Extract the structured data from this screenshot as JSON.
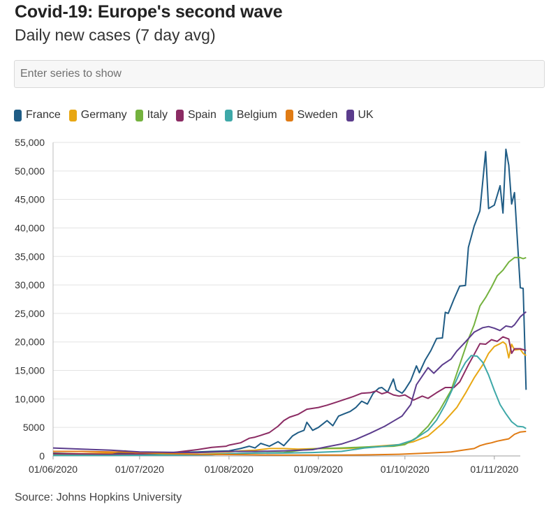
{
  "header": {
    "title": "Covid-19: Europe's second wave",
    "subtitle": "Daily new cases (7 day avg)"
  },
  "search": {
    "placeholder": "Enter series to show"
  },
  "source": "Source: Johns Hopkins University",
  "chart_data": {
    "type": "line",
    "title": "Covid-19: Europe's second wave",
    "subtitle": "Daily new cases (7 day avg)",
    "xlabel": "",
    "ylabel": "",
    "ylim": [
      0,
      55000
    ],
    "yticks": [
      0,
      5000,
      10000,
      15000,
      20000,
      25000,
      30000,
      35000,
      40000,
      45000,
      50000,
      55000
    ],
    "ytick_labels": [
      "0",
      "5000",
      "10,000",
      "15,000",
      "20,000",
      "25,000",
      "30,000",
      "35,000",
      "40,000",
      "45,000",
      "50,000",
      "55,000"
    ],
    "xlim_days": [
      0,
      162
    ],
    "xticks": [
      {
        "day": 0,
        "label": "01/06/2020"
      },
      {
        "day": 30,
        "label": "01/07/2020"
      },
      {
        "day": 61,
        "label": "01/08/2020"
      },
      {
        "day": 92,
        "label": "01/09/2020"
      },
      {
        "day": 122,
        "label": "01/10/2020"
      },
      {
        "day": 153,
        "label": "01/11/2020"
      }
    ],
    "grid": true,
    "legend_position": "top-left",
    "series": [
      {
        "name": "France",
        "color": "#1f5c85",
        "points": [
          [
            0,
            500
          ],
          [
            10,
            350
          ],
          [
            20,
            400
          ],
          [
            30,
            500
          ],
          [
            40,
            600
          ],
          [
            50,
            700
          ],
          [
            55,
            800
          ],
          [
            61,
            900
          ],
          [
            65,
            1300
          ],
          [
            68,
            1700
          ],
          [
            70,
            1400
          ],
          [
            72,
            2200
          ],
          [
            75,
            1700
          ],
          [
            78,
            2500
          ],
          [
            80,
            1800
          ],
          [
            83,
            3500
          ],
          [
            85,
            4100
          ],
          [
            87,
            4500
          ],
          [
            88,
            5900
          ],
          [
            90,
            4500
          ],
          [
            92,
            5000
          ],
          [
            94,
            5800
          ],
          [
            95,
            6200
          ],
          [
            97,
            5300
          ],
          [
            99,
            7000
          ],
          [
            101,
            7400
          ],
          [
            103,
            7800
          ],
          [
            105,
            8500
          ],
          [
            107,
            9600
          ],
          [
            109,
            9100
          ],
          [
            111,
            11000
          ],
          [
            113,
            11900
          ],
          [
            114,
            12000
          ],
          [
            116,
            11200
          ],
          [
            118,
            13500
          ],
          [
            119,
            11600
          ],
          [
            121,
            11000
          ],
          [
            122,
            11600
          ],
          [
            124,
            13200
          ],
          [
            126,
            15800
          ],
          [
            127,
            14600
          ],
          [
            129,
            16800
          ],
          [
            131,
            18500
          ],
          [
            133,
            20600
          ],
          [
            135,
            20700
          ],
          [
            136,
            25200
          ],
          [
            137,
            25000
          ],
          [
            139,
            27500
          ],
          [
            141,
            29800
          ],
          [
            143,
            29900
          ],
          [
            144,
            36600
          ],
          [
            146,
            40300
          ],
          [
            148,
            43000
          ],
          [
            150,
            53400
          ],
          [
            151,
            43400
          ],
          [
            153,
            44000
          ],
          [
            155,
            47400
          ],
          [
            156,
            42600
          ],
          [
            157,
            53800
          ],
          [
            158,
            51000
          ],
          [
            159,
            44200
          ],
          [
            160,
            46200
          ],
          [
            162,
            29500
          ],
          [
            163,
            29400
          ],
          [
            164,
            11600
          ]
        ]
      },
      {
        "name": "Germany",
        "color": "#e8a713",
        "points": [
          [
            0,
            400
          ],
          [
            10,
            400
          ],
          [
            20,
            500
          ],
          [
            25,
            900
          ],
          [
            30,
            400
          ],
          [
            40,
            500
          ],
          [
            50,
            600
          ],
          [
            61,
            700
          ],
          [
            65,
            900
          ],
          [
            70,
            1000
          ],
          [
            75,
            1300
          ],
          [
            80,
            1300
          ],
          [
            85,
            1200
          ],
          [
            92,
            1300
          ],
          [
            100,
            1300
          ],
          [
            105,
            1400
          ],
          [
            110,
            1600
          ],
          [
            115,
            1800
          ],
          [
            120,
            2000
          ],
          [
            125,
            2500
          ],
          [
            130,
            3500
          ],
          [
            135,
            5700
          ],
          [
            140,
            8500
          ],
          [
            143,
            11000
          ],
          [
            146,
            13700
          ],
          [
            149,
            16000
          ],
          [
            151,
            18000
          ],
          [
            153,
            19200
          ],
          [
            155,
            19700
          ],
          [
            156,
            20000
          ],
          [
            157,
            19600
          ],
          [
            158,
            17200
          ],
          [
            159,
            19600
          ],
          [
            160,
            18600
          ],
          [
            162,
            18700
          ],
          [
            163,
            18000
          ],
          [
            164,
            17600
          ]
        ]
      },
      {
        "name": "Italy",
        "color": "#74b23e",
        "points": [
          [
            0,
            200
          ],
          [
            10,
            200
          ],
          [
            20,
            200
          ],
          [
            30,
            200
          ],
          [
            40,
            250
          ],
          [
            50,
            300
          ],
          [
            61,
            400
          ],
          [
            70,
            500
          ],
          [
            80,
            600
          ],
          [
            86,
            1000
          ],
          [
            92,
            1300
          ],
          [
            100,
            1400
          ],
          [
            110,
            1600
          ],
          [
            118,
            1700
          ],
          [
            122,
            2000
          ],
          [
            126,
            3200
          ],
          [
            130,
            5200
          ],
          [
            134,
            8000
          ],
          [
            138,
            11500
          ],
          [
            142,
            17500
          ],
          [
            144,
            20500
          ],
          [
            146,
            23000
          ],
          [
            148,
            26300
          ],
          [
            150,
            27800
          ],
          [
            152,
            29600
          ],
          [
            154,
            31600
          ],
          [
            156,
            32600
          ],
          [
            158,
            34000
          ],
          [
            160,
            34800
          ],
          [
            162,
            34800
          ],
          [
            163,
            34600
          ],
          [
            164,
            34800
          ]
        ]
      },
      {
        "name": "Spain",
        "color": "#8b2b63",
        "points": [
          [
            0,
            400
          ],
          [
            10,
            350
          ],
          [
            20,
            300
          ],
          [
            30,
            350
          ],
          [
            40,
            500
          ],
          [
            50,
            1100
          ],
          [
            55,
            1500
          ],
          [
            60,
            1700
          ],
          [
            61,
            1900
          ],
          [
            65,
            2300
          ],
          [
            68,
            3100
          ],
          [
            70,
            3300
          ],
          [
            72,
            3600
          ],
          [
            75,
            4100
          ],
          [
            78,
            5200
          ],
          [
            80,
            6200
          ],
          [
            82,
            6800
          ],
          [
            85,
            7300
          ],
          [
            88,
            8200
          ],
          [
            92,
            8500
          ],
          [
            95,
            8900
          ],
          [
            98,
            9400
          ],
          [
            101,
            9900
          ],
          [
            104,
            10400
          ],
          [
            107,
            11000
          ],
          [
            110,
            11100
          ],
          [
            112,
            11400
          ],
          [
            114,
            10900
          ],
          [
            116,
            11200
          ],
          [
            118,
            10700
          ],
          [
            120,
            10500
          ],
          [
            122,
            10700
          ],
          [
            125,
            9800
          ],
          [
            128,
            10500
          ],
          [
            130,
            10100
          ],
          [
            133,
            11100
          ],
          [
            136,
            12000
          ],
          [
            139,
            12000
          ],
          [
            141,
            13000
          ],
          [
            144,
            16000
          ],
          [
            146,
            17800
          ],
          [
            148,
            19700
          ],
          [
            150,
            19600
          ],
          [
            152,
            20400
          ],
          [
            154,
            20100
          ],
          [
            156,
            20900
          ],
          [
            158,
            20500
          ],
          [
            159,
            18000
          ],
          [
            160,
            18800
          ],
          [
            162,
            18800
          ],
          [
            164,
            18500
          ]
        ]
      },
      {
        "name": "Belgium",
        "color": "#3ea8a8",
        "points": [
          [
            0,
            100
          ],
          [
            20,
            100
          ],
          [
            40,
            150
          ],
          [
            55,
            200
          ],
          [
            61,
            400
          ],
          [
            70,
            500
          ],
          [
            80,
            500
          ],
          [
            90,
            600
          ],
          [
            100,
            800
          ],
          [
            108,
            1400
          ],
          [
            115,
            1700
          ],
          [
            120,
            2000
          ],
          [
            125,
            2800
          ],
          [
            130,
            4500
          ],
          [
            133,
            6300
          ],
          [
            136,
            9000
          ],
          [
            139,
            12300
          ],
          [
            141,
            14600
          ],
          [
            143,
            16400
          ],
          [
            145,
            17600
          ],
          [
            147,
            17500
          ],
          [
            149,
            16400
          ],
          [
            151,
            14200
          ],
          [
            153,
            11500
          ],
          [
            155,
            9000
          ],
          [
            157,
            7400
          ],
          [
            159,
            6000
          ],
          [
            161,
            5200
          ],
          [
            163,
            5100
          ],
          [
            164,
            4800
          ]
        ]
      },
      {
        "name": "Sweden",
        "color": "#e07b14",
        "points": [
          [
            0,
            800
          ],
          [
            10,
            800
          ],
          [
            20,
            700
          ],
          [
            30,
            600
          ],
          [
            40,
            400
          ],
          [
            50,
            300
          ],
          [
            61,
            250
          ],
          [
            70,
            200
          ],
          [
            80,
            150
          ],
          [
            92,
            150
          ],
          [
            100,
            150
          ],
          [
            110,
            200
          ],
          [
            120,
            300
          ],
          [
            130,
            500
          ],
          [
            138,
            700
          ],
          [
            142,
            1000
          ],
          [
            146,
            1300
          ],
          [
            148,
            1800
          ],
          [
            150,
            2100
          ],
          [
            152,
            2300
          ],
          [
            154,
            2600
          ],
          [
            156,
            2800
          ],
          [
            158,
            3000
          ],
          [
            160,
            3800
          ],
          [
            162,
            4200
          ],
          [
            164,
            4300
          ]
        ]
      },
      {
        "name": "UK",
        "color": "#5b3c8c",
        "points": [
          [
            0,
            1400
          ],
          [
            10,
            1200
          ],
          [
            20,
            1000
          ],
          [
            30,
            700
          ],
          [
            40,
            650
          ],
          [
            50,
            600
          ],
          [
            61,
            800
          ],
          [
            70,
            800
          ],
          [
            80,
            900
          ],
          [
            90,
            1100
          ],
          [
            95,
            1600
          ],
          [
            100,
            2100
          ],
          [
            105,
            2900
          ],
          [
            110,
            4000
          ],
          [
            115,
            5200
          ],
          [
            118,
            6100
          ],
          [
            121,
            7000
          ],
          [
            124,
            9000
          ],
          [
            126,
            12500
          ],
          [
            128,
            14000
          ],
          [
            130,
            15500
          ],
          [
            132,
            14500
          ],
          [
            135,
            16000
          ],
          [
            138,
            17000
          ],
          [
            140,
            18400
          ],
          [
            143,
            20000
          ],
          [
            146,
            21700
          ],
          [
            149,
            22500
          ],
          [
            151,
            22700
          ],
          [
            153,
            22400
          ],
          [
            155,
            22000
          ],
          [
            157,
            22800
          ],
          [
            159,
            22600
          ],
          [
            160,
            23000
          ],
          [
            162,
            24400
          ],
          [
            164,
            25300
          ]
        ]
      }
    ]
  }
}
